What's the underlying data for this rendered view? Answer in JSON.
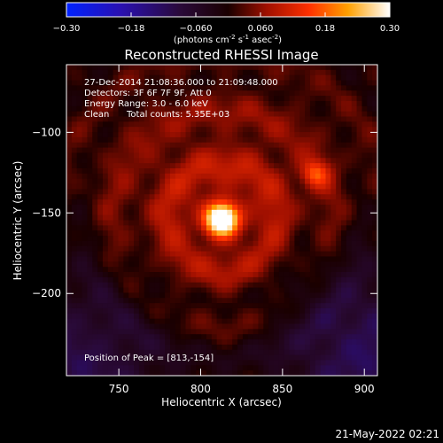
{
  "chart_data": {
    "type": "heatmap",
    "title": "Reconstructed RHESSI Image",
    "xlabel": "Heliocentric X (arcsec)",
    "ylabel": "Heliocentric Y (arcsec)",
    "xlim": [
      718,
      908
    ],
    "ylim": [
      -251,
      -58
    ],
    "x_ticks": [
      750,
      800,
      850,
      900
    ],
    "y_ticks": [
      -100,
      -150,
      -200
    ],
    "colorbar": {
      "range": [
        -0.3,
        0.3
      ],
      "ticks": [
        "-0.30",
        "-0.18",
        "-0.060",
        "0.060",
        "0.18",
        "0.30"
      ],
      "units_pre": "(photons cm",
      "units_e1": "-2",
      "units_mid1": " s",
      "units_e2": "-1",
      "units_mid2": " asec",
      "units_e3": "-2",
      "units_post": ")"
    },
    "annotations": {
      "time_range": "27-Dec-2014 21:08:36.000 to 21:09:48.000",
      "detectors": "Detectors: 3F 6F 7F 9F, Att 0",
      "energy": "Energy Range: 3.0 - 6.0 keV",
      "method": "Clean",
      "counts": "Total counts: 5.35E+03",
      "peak": "Position of Peak = [813,-154]"
    },
    "peak": {
      "x": 813,
      "y": -154,
      "value": 0.3
    },
    "secondary_source": {
      "x": 870,
      "y": -126,
      "value": 0.22
    }
  },
  "timestamp": "21-May-2022 02:21"
}
